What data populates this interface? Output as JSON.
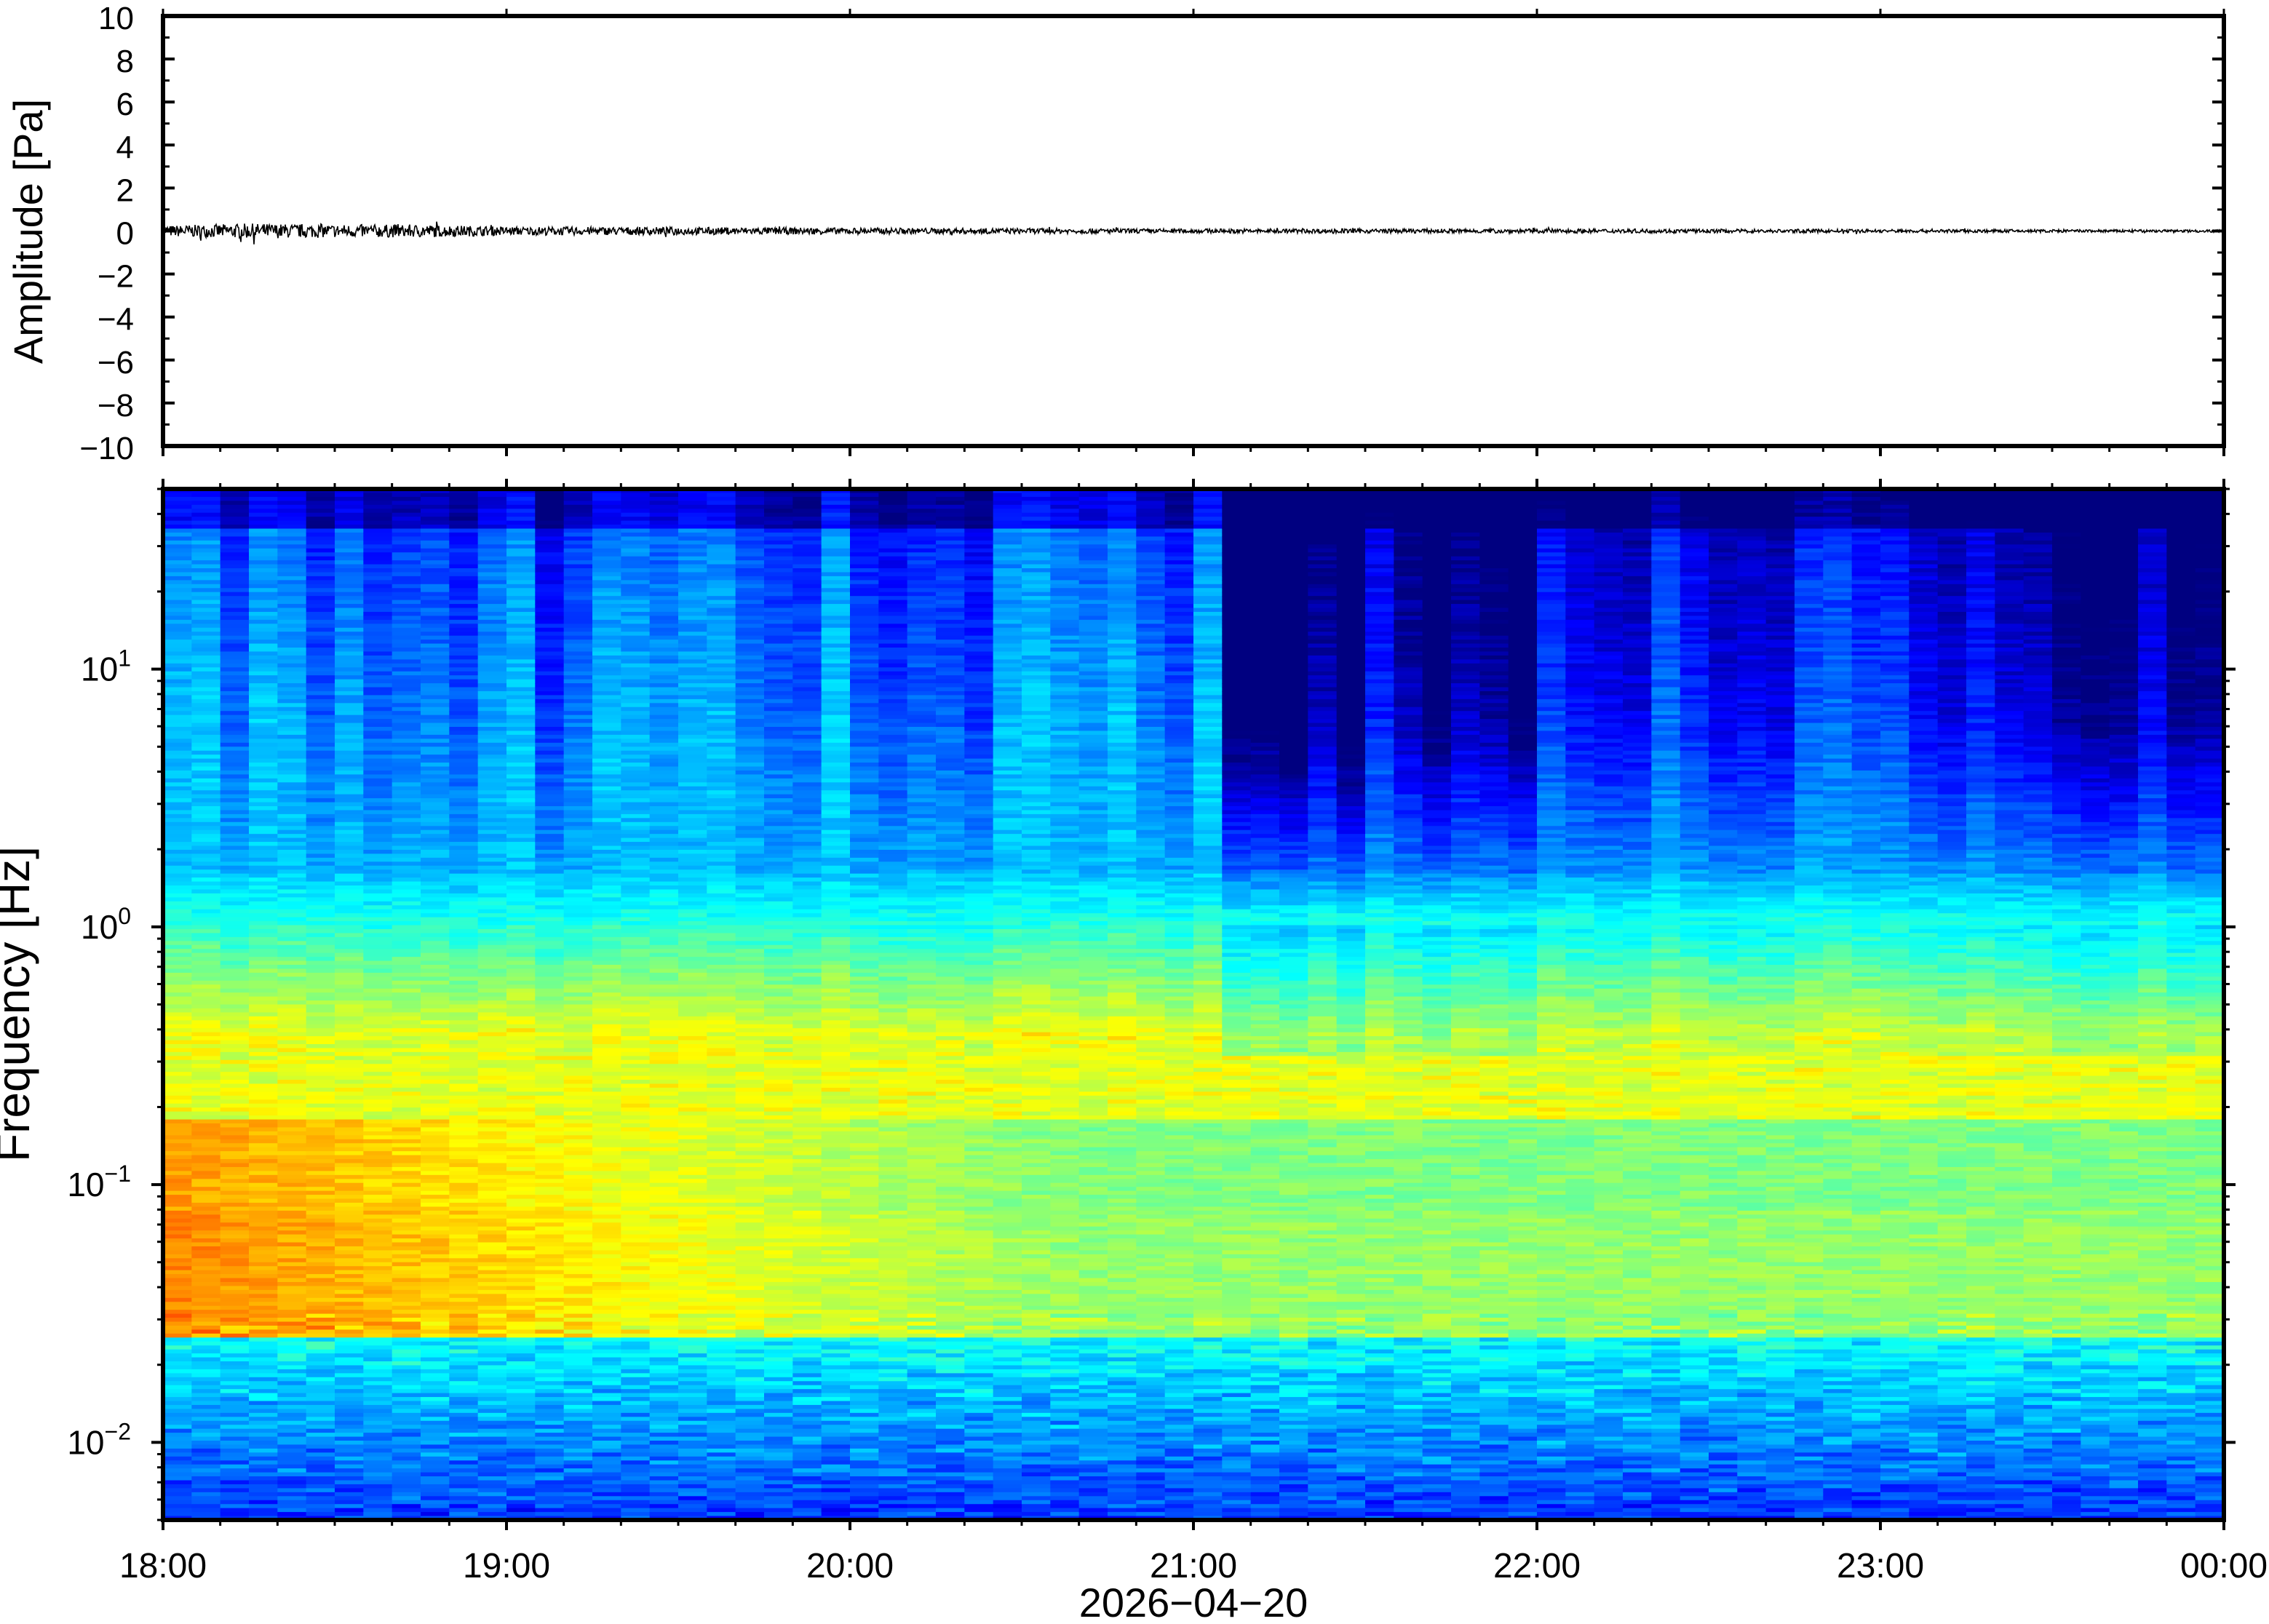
{
  "chart_data": [
    {
      "type": "line",
      "ylabel": "Amplitude [Pa]",
      "ylim": [
        -10,
        10
      ],
      "y_ticks": [
        "10",
        "8",
        "6",
        "4",
        "2",
        "0",
        "−2",
        "−4",
        "−6",
        "−8",
        "−10"
      ],
      "x_range": [
        "18:00",
        "00:00"
      ],
      "series": [
        {
          "values_description_free": true,
          "envelope": [
            {
              "t": "18:00",
              "amp": 0.25
            },
            {
              "t": "18:15",
              "amp": 0.35
            },
            {
              "t": "18:30",
              "amp": 0.3
            },
            {
              "t": "18:45",
              "amp": 0.3
            },
            {
              "t": "19:00",
              "amp": 0.2
            },
            {
              "t": "19:30",
              "amp": 0.18
            },
            {
              "t": "20:00",
              "amp": 0.15
            },
            {
              "t": "21:00",
              "amp": 0.1
            },
            {
              "t": "22:00",
              "amp": 0.1
            },
            {
              "t": "23:00",
              "amp": 0.08
            },
            {
              "t": "00:00",
              "amp": 0.06
            }
          ]
        }
      ]
    },
    {
      "type": "heatmap",
      "ylabel": "Frequency [Hz]",
      "yscale": "log",
      "ylim": [
        0.005,
        50
      ],
      "y_ticks": [
        {
          "base": "10",
          "exp": "1",
          "value": 10
        },
        {
          "base": "10",
          "exp": "0",
          "value": 1
        },
        {
          "base": "10",
          "exp": "−1",
          "value": 0.1
        },
        {
          "base": "10",
          "exp": "−2",
          "value": 0.01
        }
      ],
      "x_ticks": [
        "18:00",
        "19:00",
        "20:00",
        "21:00",
        "22:00",
        "23:00",
        "00:00"
      ],
      "xlabel": "2026−04−20",
      "colormap": "jet",
      "columns": 72
    }
  ]
}
